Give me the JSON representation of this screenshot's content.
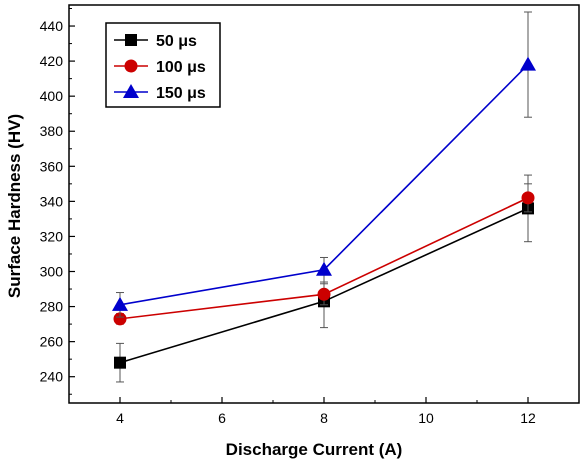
{
  "chart_data": {
    "type": "line",
    "xlabel": "Discharge Current (A)",
    "ylabel": "Surface Hardness (HV)",
    "xlim": [
      3,
      13
    ],
    "ylim": [
      225,
      452
    ],
    "x_ticks": [
      4,
      6,
      8,
      10,
      12
    ],
    "y_ticks": [
      240,
      260,
      280,
      300,
      320,
      340,
      360,
      380,
      400,
      420,
      440
    ],
    "x": [
      4,
      8,
      12
    ],
    "grid": false,
    "legend_position": "top-left",
    "series": [
      {
        "name": "50 μs",
        "color": "#000000",
        "marker": "square",
        "values": [
          248,
          283,
          336
        ],
        "error": [
          11,
          15,
          19
        ]
      },
      {
        "name": "100 μs",
        "color": "#cc0000",
        "marker": "circle",
        "values": [
          273,
          287,
          342
        ],
        "error": [
          3,
          6,
          8
        ]
      },
      {
        "name": "150 μs",
        "color": "#0000cc",
        "marker": "triangle",
        "values": [
          281,
          301,
          418
        ],
        "error": [
          7,
          7,
          30
        ]
      }
    ]
  }
}
